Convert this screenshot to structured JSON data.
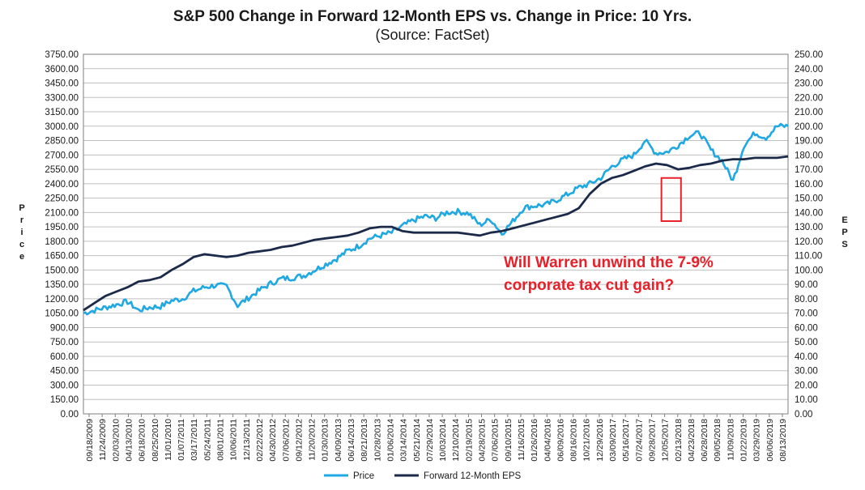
{
  "chart_data": {
    "type": "line",
    "title": "S&P 500 Change in Forward 12-Month EPS vs. Change in Price: 10 Yrs.",
    "subtitle": "(Source: FactSet)",
    "ylabel_left": "Price",
    "ylabel_right": "EPS",
    "ylim_left": [
      0,
      3750
    ],
    "ylim_right": [
      0,
      250
    ],
    "yticks_left": [
      "0.00",
      "150.00",
      "300.00",
      "450.00",
      "600.00",
      "750.00",
      "900.00",
      "1050.00",
      "1200.00",
      "1350.00",
      "1500.00",
      "1650.00",
      "1800.00",
      "1950.00",
      "2100.00",
      "2250.00",
      "2400.00",
      "2550.00",
      "2700.00",
      "2850.00",
      "3000.00",
      "3150.00",
      "3300.00",
      "3450.00",
      "3600.00",
      "3750.00"
    ],
    "yticks_right": [
      "0.00",
      "10.00",
      "20.00",
      "30.00",
      "40.00",
      "50.00",
      "60.00",
      "70.00",
      "80.00",
      "90.00",
      "100.00",
      "110.00",
      "120.00",
      "130.00",
      "140.00",
      "150.00",
      "160.00",
      "170.00",
      "180.00",
      "190.00",
      "200.00",
      "210.00",
      "220.00",
      "230.00",
      "240.00",
      "250.00"
    ],
    "xticks": [
      "09/18/2009",
      "11/24/2009",
      "02/03/2010",
      "04/13/2010",
      "06/18/2010",
      "08/25/2010",
      "11/01/2010",
      "01/07/2011",
      "03/17/2011",
      "05/24/2011",
      "08/01/2011",
      "10/06/2011",
      "12/13/2011",
      "02/22/2012",
      "04/30/2012",
      "07/06/2012",
      "09/12/2012",
      "11/20/2012",
      "01/30/2013",
      "04/09/2013",
      "06/14/2013",
      "08/21/2013",
      "10/28/2013",
      "01/06/2014",
      "03/14/2014",
      "05/21/2014",
      "07/29/2014",
      "10/03/2014",
      "12/10/2014",
      "02/19/2015",
      "04/28/2015",
      "07/06/2015",
      "09/10/2015",
      "11/16/2015",
      "01/26/2016",
      "04/04/2016",
      "06/09/2016",
      "08/16/2016",
      "10/21/2016",
      "12/29/2016",
      "03/09/2017",
      "05/16/2017",
      "07/24/2017",
      "09/28/2017",
      "12/05/2017",
      "02/13/2018",
      "04/23/2018",
      "06/28/2018",
      "09/05/2018",
      "11/09/2018",
      "01/22/2019",
      "03/29/2019",
      "06/06/2019",
      "08/13/2019"
    ],
    "series": [
      {
        "name": "Price",
        "color": "#1fa8e1",
        "axis": "left",
        "values": [
          1050,
          1080,
          1110,
          1140,
          1170,
          1080,
          1110,
          1120,
          1180,
          1200,
          1280,
          1320,
          1340,
          1330,
          1130,
          1210,
          1290,
          1360,
          1410,
          1420,
          1440,
          1500,
          1560,
          1620,
          1700,
          1750,
          1830,
          1860,
          1890,
          1960,
          2020,
          2060,
          2040,
          2100,
          2110,
          2090,
          1970,
          2030,
          1880,
          2010,
          2150,
          2170,
          2180,
          2230,
          2290,
          2360,
          2400,
          2460,
          2580,
          2650,
          2700,
          2850,
          2720,
          2730,
          2800,
          2900,
          2930,
          2750,
          2640,
          2430,
          2800,
          2930,
          2880,
          3000,
          3000
        ]
      },
      {
        "name": "Forward 12-Month EPS",
        "color": "#1c2a4a",
        "axis": "right",
        "values": [
          72,
          77,
          82,
          85,
          88,
          92,
          93,
          95,
          100,
          104,
          109,
          111,
          110,
          109,
          110,
          112,
          113,
          114,
          116,
          117,
          119,
          121,
          122,
          123,
          124,
          126,
          129,
          130,
          130,
          127,
          126,
          126,
          126,
          126,
          126,
          125,
          124,
          126,
          127,
          129,
          131,
          133,
          135,
          137,
          139,
          143,
          153,
          160,
          164,
          166,
          169,
          172,
          174,
          173,
          170,
          171,
          173,
          174,
          176,
          177,
          177,
          178,
          178,
          178,
          179
        ]
      }
    ],
    "legend": [
      "Price",
      "Forward 12-Month EPS"
    ],
    "legend_position": "bottom",
    "annotation": {
      "line1": "Will Warren unwind the 7-9%",
      "line2": "corporate tax cut gain?",
      "color": "#e8202a"
    },
    "highlight_box": {
      "x_range": [
        "12/05/2017",
        "02/13/2018"
      ],
      "y_range_left": [
        2010,
        2460
      ],
      "color": "#e8202a"
    }
  }
}
